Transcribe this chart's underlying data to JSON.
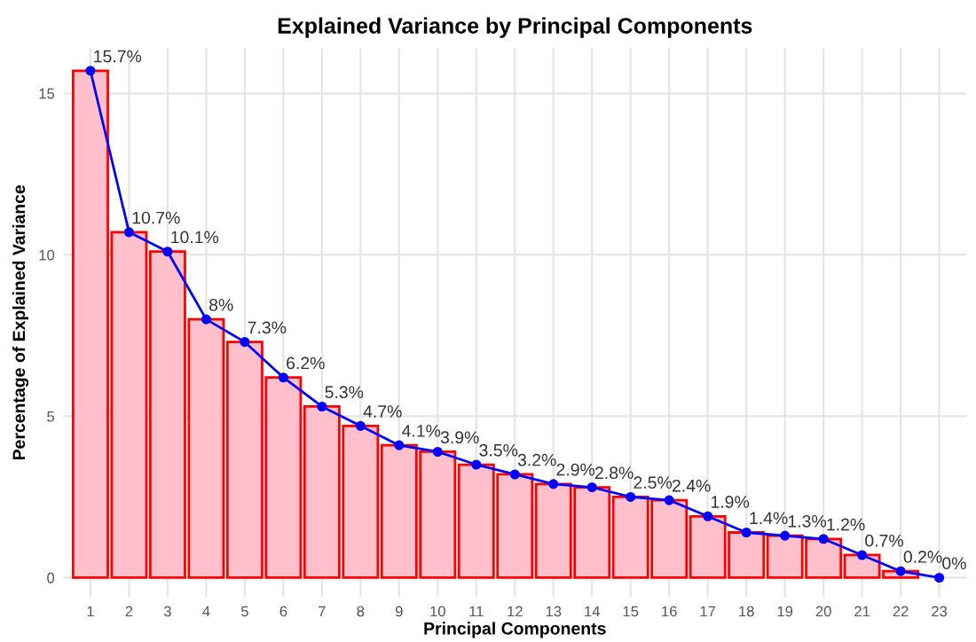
{
  "chart_data": {
    "type": "bar",
    "title": "Explained Variance by Principal Components",
    "xlabel": "Principal Components",
    "ylabel": "Percentage of Explained Variance",
    "categories": [
      "1",
      "2",
      "3",
      "4",
      "5",
      "6",
      "7",
      "8",
      "9",
      "10",
      "11",
      "12",
      "13",
      "14",
      "15",
      "16",
      "17",
      "18",
      "19",
      "20",
      "21",
      "22",
      "23"
    ],
    "series": [
      {
        "color": "#ffc0cb",
        "values": [
          15.7,
          10.7,
          10.1,
          8,
          7.3,
          6.2,
          5.3,
          4.7,
          4.1,
          3.9,
          3.5,
          3.2,
          2.9,
          2.8,
          2.5,
          2.4,
          1.9,
          1.4,
          1.3,
          1.2,
          0.7,
          0.2,
          0
        ]
      },
      {
        "type": "line",
        "color": "#0000ff",
        "marker": "circle",
        "line_style": "solid",
        "values": [
          15.7,
          10.7,
          10.1,
          8,
          7.3,
          6.2,
          5.3,
          4.7,
          4.1,
          3.9,
          3.5,
          3.2,
          2.9,
          2.8,
          2.5,
          2.4,
          1.9,
          1.4,
          1.3,
          1.2,
          0.7,
          0.2,
          0
        ],
        "value_labels": [
          "15.7%",
          "10.7%",
          "10.1%",
          "8%",
          "7.3%",
          "6.2%",
          "5.3%",
          "4.7%",
          "4.1%",
          "3.9%",
          "3.5%",
          "3.2%",
          "2.9%",
          "2.8%",
          "2.5%",
          "2.4%",
          "1.9%",
          "1.4%",
          "1.3%",
          "1.2%",
          "0.7%",
          "0.2%",
          "0%"
        ]
      }
    ],
    "ylim": [
      -0.6,
      16.4
    ],
    "yticks": [
      0,
      5,
      10,
      15
    ],
    "grid": true,
    "legend": false
  }
}
